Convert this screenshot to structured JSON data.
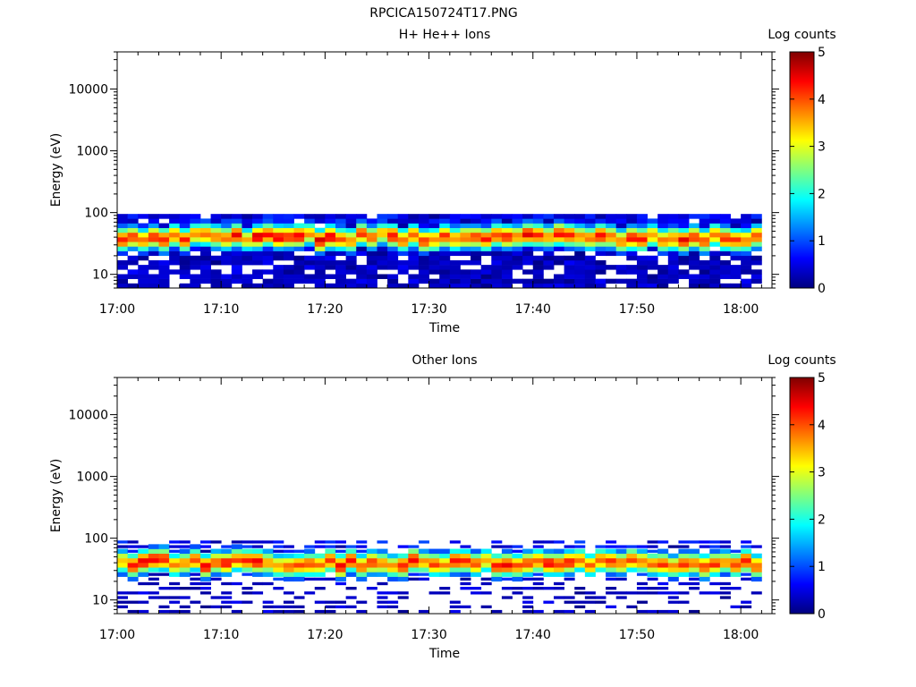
{
  "figure_title": "RPCICA150724T17.PNG",
  "colorbar_colors": [
    "#00007f",
    "#0000ff",
    "#007fff",
    "#00ffff",
    "#7fff7f",
    "#ffff00",
    "#ff7f00",
    "#ff0000",
    "#7f0000"
  ],
  "chart_data": [
    {
      "type": "heatmap",
      "title": "H+ He++ Ions",
      "xlabel": "Time",
      "ylabel": "Energy (eV)",
      "x_ticks": [
        "17:00",
        "17:10",
        "17:20",
        "17:30",
        "17:40",
        "17:50",
        "18:00"
      ],
      "xlim": [
        "17:00",
        "18:03"
      ],
      "y_scale": "log",
      "y_ticks": [
        10,
        100,
        1000,
        10000
      ],
      "ylim": [
        6,
        40000
      ],
      "colorbar": {
        "label": "Log counts",
        "min": 0,
        "max": 5,
        "ticks": [
          0,
          1,
          2,
          3,
          4,
          5
        ]
      },
      "data_time_range": [
        "17:00",
        "18:02"
      ],
      "data_energy_range_eV": [
        6,
        95
      ],
      "peak_energy_eV": 40,
      "peak_log_counts_range": [
        3.5,
        4.5
      ]
    },
    {
      "type": "heatmap",
      "title": "Other Ions",
      "xlabel": "Time",
      "ylabel": "Energy (eV)",
      "x_ticks": [
        "17:00",
        "17:10",
        "17:20",
        "17:30",
        "17:40",
        "17:50",
        "18:00"
      ],
      "xlim": [
        "17:00",
        "18:03"
      ],
      "y_scale": "log",
      "y_ticks": [
        10,
        100,
        1000,
        10000
      ],
      "ylim": [
        6,
        40000
      ],
      "colorbar": {
        "label": "Log counts",
        "min": 0,
        "max": 5,
        "ticks": [
          0,
          1,
          2,
          3,
          4,
          5
        ]
      },
      "data_time_range": [
        "17:00",
        "18:02"
      ],
      "data_energy_range_eV": [
        6,
        95
      ],
      "peak_energy_eV": 40,
      "peak_log_counts_range": [
        3.5,
        4.5
      ]
    }
  ]
}
